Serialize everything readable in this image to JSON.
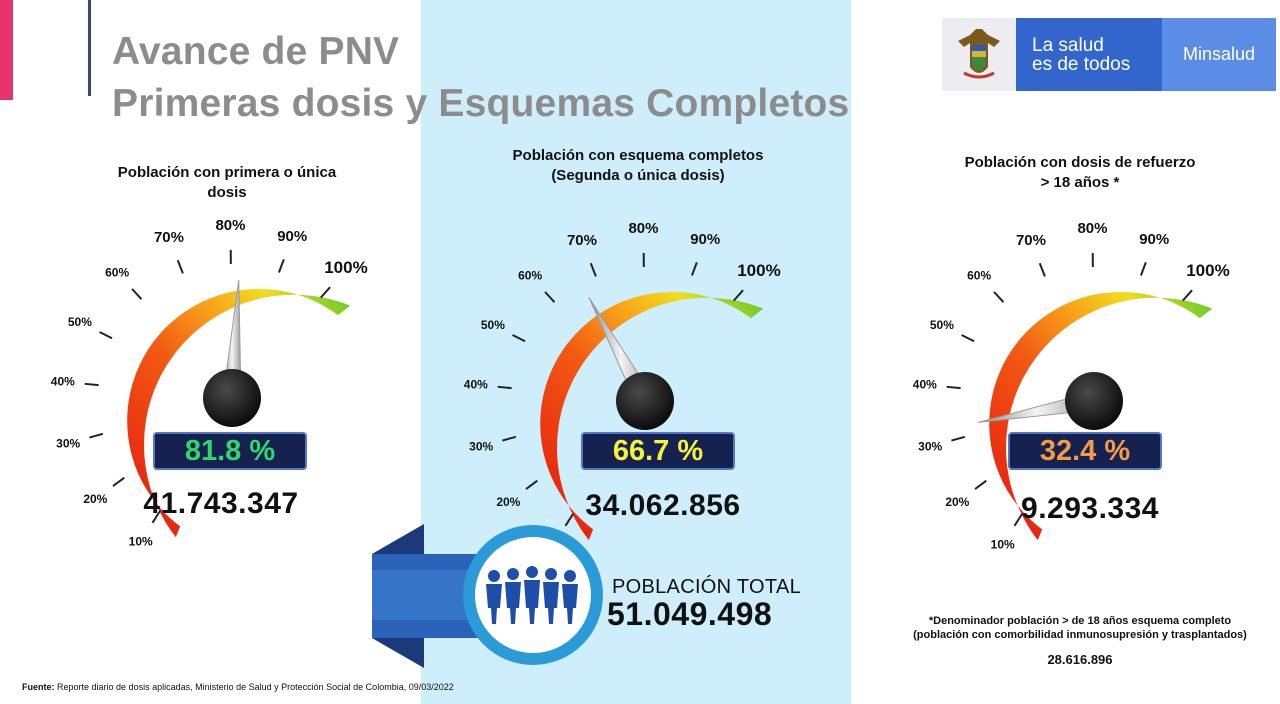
{
  "title": {
    "line1": "Avance de PNV",
    "line2": "Primeras dosis y Esquemas Completos"
  },
  "logo": {
    "slogan_line1": "La salud",
    "slogan_line2": "es de todos",
    "ministry": "Minsalud"
  },
  "colors": {
    "panel_blue": "#cdeefa",
    "pink_accent": "#e8336e",
    "pct_box_bg": "#15224f",
    "pct_green": "#2fd86b",
    "pct_yellow": "#f6f13a",
    "pct_orange": "#f59a45"
  },
  "gauge_scale": [
    "10%",
    "20%",
    "30%",
    "40%",
    "50%",
    "60%",
    "70%",
    "80%",
    "90%",
    "100%"
  ],
  "gauges": [
    {
      "title_line1": "Población con primera o única",
      "title_line2": "dosis",
      "percent_label": "81.8 %",
      "percent_value": 81.8,
      "count": "41.743.347"
    },
    {
      "title_line1": "Población con esquema completos",
      "title_line2": "(Segunda o única dosis)",
      "percent_label": "66.7 %",
      "percent_value": 66.7,
      "count": "34.062.856"
    },
    {
      "title_line1": "Población con dosis de refuerzo",
      "title_line2": "> 18 años *",
      "percent_label": "32.4 %",
      "percent_value": 32.4,
      "count": "9.293.334"
    }
  ],
  "total": {
    "label": "POBLACIÓN TOTAL",
    "value": "51.049.498"
  },
  "footnote": {
    "text": "*Denominador población > de 18 años esquema completo (población con comorbilidad inmunosupresión y trasplantados)",
    "value": "28.616.896"
  },
  "source": {
    "label": "Fuente:",
    "text": "Reporte diario de dosis aplicadas, Ministerio de Salud y Protección Social de Colombia, 09/03/2022"
  }
}
